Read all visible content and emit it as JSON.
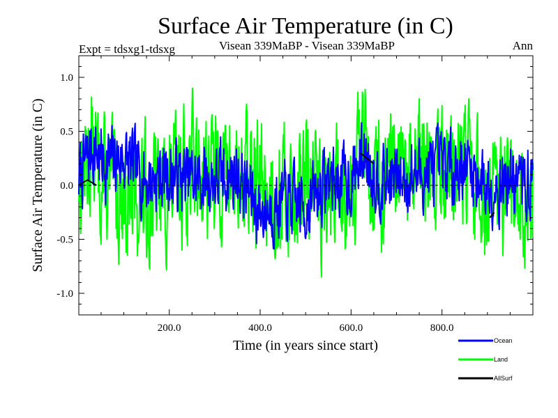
{
  "chart_data": {
    "type": "line",
    "title": "Surface Air Temperature (in C)",
    "subtitle_left": "Expt = tdsxg1-tdsxg",
    "subtitle_center": "Visean 339MaBP - Visean 339MaBP",
    "subtitle_right": "Ann",
    "xlabel": "Time (in years since start)",
    "ylabel": "Surface Air Temperature (in C)",
    "xlim": [
      1,
      1000
    ],
    "ylim": [
      -1.2,
      1.2
    ],
    "x_ticks": [
      200,
      400,
      600,
      800
    ],
    "x_tick_labels": [
      "200.0",
      "400.0",
      "600.0",
      "800.0"
    ],
    "y_ticks": [
      1.0,
      0.5,
      0.0,
      -0.5,
      -1.0
    ],
    "y_tick_labels": [
      "1.0",
      "0.5",
      "0.0",
      "-0.5",
      "-1.0"
    ],
    "zero_line": true,
    "series": [
      {
        "name": "Ocean",
        "color": "#0000ff",
        "amplitude": 0.28,
        "seed": 7,
        "points": [
          [
            0,
            0.05
          ],
          [
            30,
            0.35
          ],
          [
            60,
            0.2
          ],
          [
            100,
            0.25
          ],
          [
            150,
            0.05
          ],
          [
            200,
            0.1
          ],
          [
            250,
            0.05
          ],
          [
            300,
            0.05
          ],
          [
            350,
            0.1
          ],
          [
            400,
            -0.25
          ],
          [
            450,
            -0.15
          ],
          [
            500,
            -0.2
          ],
          [
            550,
            0.05
          ],
          [
            600,
            0.05
          ],
          [
            630,
            0.3
          ],
          [
            660,
            0.05
          ],
          [
            700,
            0.05
          ],
          [
            750,
            0.1
          ],
          [
            800,
            0.15
          ],
          [
            850,
            0.2
          ],
          [
            900,
            0.0
          ],
          [
            950,
            0.05
          ],
          [
            1000,
            0.0
          ]
        ]
      },
      {
        "name": "Land",
        "color": "#00ff00",
        "amplitude": 0.5,
        "seed": 13,
        "points": [
          [
            0,
            0.1
          ],
          [
            30,
            0.3
          ],
          [
            60,
            0.0
          ],
          [
            100,
            -0.1
          ],
          [
            150,
            -0.1
          ],
          [
            200,
            -0.05
          ],
          [
            250,
            0.2
          ],
          [
            300,
            0.1
          ],
          [
            350,
            0.1
          ],
          [
            400,
            0.0
          ],
          [
            450,
            -0.1
          ],
          [
            500,
            0.0
          ],
          [
            550,
            -0.1
          ],
          [
            600,
            0.1
          ],
          [
            630,
            0.4
          ],
          [
            660,
            0.0
          ],
          [
            700,
            0.0
          ],
          [
            750,
            0.1
          ],
          [
            800,
            0.2
          ],
          [
            850,
            0.2
          ],
          [
            900,
            -0.2
          ],
          [
            950,
            -0.15
          ],
          [
            1000,
            -0.1
          ]
        ]
      },
      {
        "name": "AllSurf",
        "color": "#000000",
        "amplitude": 0.0,
        "seed": 1,
        "points": [
          [
            0,
            0.0
          ],
          [
            20,
            0.05
          ],
          [
            40,
            0.0
          ],
          [
            620,
            0.3
          ],
          [
            635,
            0.25
          ],
          [
            650,
            0.2
          ],
          [
            905,
            -0.3
          ],
          [
            915,
            -0.25
          ]
        ]
      }
    ]
  }
}
